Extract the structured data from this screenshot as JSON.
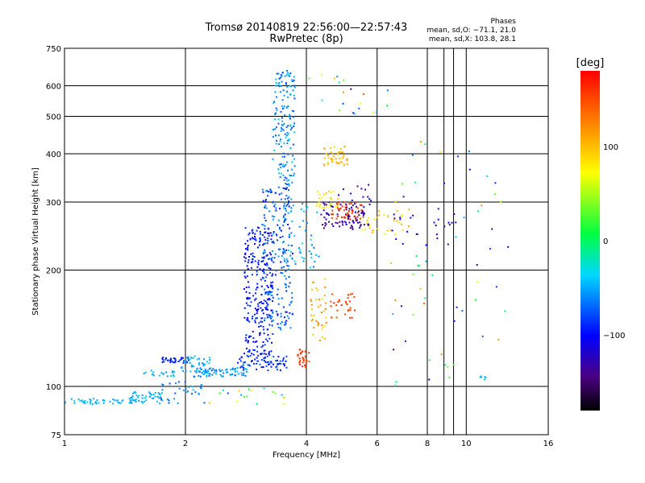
{
  "header": {
    "title": "Tromsø 20140819 22:56:00—22:57:43",
    "subtitle": "RwPretec (8p)"
  },
  "stats": {
    "heading": "Phases",
    "o_line": "mean, sd,O: −71.1, 21.0",
    "x_line": "mean, sd,X: 103.8, 28.1"
  },
  "colorbar": {
    "label": "[deg]",
    "min": -180,
    "max": 180,
    "ticks": [
      {
        "value": 100,
        "label": "100"
      },
      {
        "value": 0,
        "label": "0"
      },
      {
        "value": -100,
        "label": "−100"
      }
    ]
  },
  "chart_data": {
    "type": "scatter",
    "xlabel": "Frequency [MHz]",
    "ylabel": "Stationary phase Virtual Height [km]",
    "xscale": "log",
    "yscale": "log",
    "xlim": [
      1,
      16
    ],
    "ylim": [
      75,
      750
    ],
    "grid": true,
    "x_ticks": [
      {
        "value": 1,
        "label": "1",
        "grid": false
      },
      {
        "value": 2,
        "label": "2",
        "grid": true
      },
      {
        "value": 4,
        "label": "4",
        "grid": true
      },
      {
        "value": 6,
        "label": "6",
        "grid": true
      },
      {
        "value": 8,
        "label": "8",
        "grid": true
      },
      {
        "value": 10,
        "label": "10",
        "grid": true
      },
      {
        "value": 16,
        "label": "16",
        "grid": false
      }
    ],
    "x_grid_extra": [
      8.8,
      9.3
    ],
    "y_ticks": [
      {
        "value": 75,
        "label": "75",
        "grid": false
      },
      {
        "value": 100,
        "label": "100",
        "grid": true
      },
      {
        "value": 200,
        "label": "200",
        "grid": true
      },
      {
        "value": 300,
        "label": "300",
        "grid": true
      },
      {
        "value": 400,
        "label": "400",
        "grid": true
      },
      {
        "value": 500,
        "label": "500",
        "grid": true
      },
      {
        "value": 600,
        "label": "600",
        "grid": true
      },
      {
        "value": 750,
        "label": "750",
        "grid": false
      }
    ],
    "clusters": [
      {
        "f": [
          1.0,
          1.6
        ],
        "h": [
          90,
          93
        ],
        "phase": [
          -55,
          -40
        ],
        "n": 60
      },
      {
        "f": [
          1.4,
          1.75
        ],
        "h": [
          93,
          97
        ],
        "phase": [
          -60,
          -40
        ],
        "n": 30
      },
      {
        "f": [
          1.7,
          2.2
        ],
        "h": [
          90,
          104
        ],
        "phase": [
          -80,
          -40
        ],
        "n": 35
      },
      {
        "f": [
          1.75,
          2.05
        ],
        "h": [
          115,
          119
        ],
        "phase": [
          -100,
          -85
        ],
        "n": 35
      },
      {
        "f": [
          1.95,
          2.3
        ],
        "h": [
          108,
          120
        ],
        "phase": [
          -60,
          -35
        ],
        "n": 40
      },
      {
        "f": [
          1.55,
          1.9
        ],
        "h": [
          106,
          110
        ],
        "phase": [
          -60,
          -40
        ],
        "n": 18
      },
      {
        "f": [
          2.1,
          2.9
        ],
        "h": [
          106,
          112
        ],
        "phase": [
          -70,
          -40
        ],
        "n": 70
      },
      {
        "f": [
          2.7,
          3.6
        ],
        "h": [
          110,
          120
        ],
        "phase": [
          -100,
          -70
        ],
        "n": 70
      },
      {
        "f": [
          2.8,
          3.3
        ],
        "h": [
          120,
          260
        ],
        "phase": [
          -110,
          -80
        ],
        "n": 260
      },
      {
        "f": [
          3.1,
          3.7
        ],
        "h": [
          140,
          330
        ],
        "phase": [
          -100,
          -50
        ],
        "n": 220
      },
      {
        "f": [
          3.3,
          3.75
        ],
        "h": [
          330,
          660
        ],
        "phase": [
          -80,
          -35
        ],
        "n": 160
      },
      {
        "f": [
          3.5,
          4.3
        ],
        "h": [
          200,
          300
        ],
        "phase": [
          -70,
          -30
        ],
        "n": 50
      },
      {
        "f": [
          3.8,
          4.1
        ],
        "h": [
          112,
          125
        ],
        "phase": [
          140,
          170
        ],
        "n": 30
      },
      {
        "f": [
          4.1,
          4.5
        ],
        "h": [
          130,
          190
        ],
        "phase": [
          80,
          130
        ],
        "n": 40
      },
      {
        "f": [
          4.3,
          5.6
        ],
        "h": [
          255,
          300
        ],
        "phase": [
          -150,
          -120
        ],
        "n": 70
      },
      {
        "f": [
          4.6,
          5.5
        ],
        "h": [
          270,
          300
        ],
        "phase": [
          140,
          170
        ],
        "n": 45
      },
      {
        "f": [
          4.4,
          5.1
        ],
        "h": [
          370,
          420
        ],
        "phase": [
          90,
          115
        ],
        "n": 45
      },
      {
        "f": [
          4.2,
          4.8
        ],
        "h": [
          290,
          320
        ],
        "phase": [
          60,
          100
        ],
        "n": 25
      },
      {
        "f": [
          4.6,
          5.3
        ],
        "h": [
          150,
          175
        ],
        "phase": [
          140,
          165
        ],
        "n": 30
      },
      {
        "f": [
          4.8,
          5.8
        ],
        "h": [
          260,
          340
        ],
        "phase": [
          -150,
          -110
        ],
        "n": 35
      },
      {
        "f": [
          5.5,
          7.2
        ],
        "h": [
          245,
          290
        ],
        "phase": [
          60,
          110
        ],
        "n": 30
      },
      {
        "f": [
          6.5,
          9.5
        ],
        "h": [
          230,
          280
        ],
        "phase": [
          -140,
          -100
        ],
        "n": 25
      },
      {
        "f": [
          6.5,
          13.0
        ],
        "h": [
          100,
          440
        ],
        "phase": [
          -150,
          150
        ],
        "n": 60
      },
      {
        "f": [
          4.0,
          6.5
        ],
        "h": [
          500,
          650
        ],
        "phase": [
          -150,
          150
        ],
        "n": 20
      },
      {
        "f": [
          2.2,
          3.6
        ],
        "h": [
          90,
          100
        ],
        "phase": [
          -100,
          100
        ],
        "n": 20
      },
      {
        "f": [
          10.8,
          11.2
        ],
        "h": [
          104,
          107
        ],
        "phase": [
          -50,
          -40
        ],
        "n": 6
      }
    ]
  }
}
